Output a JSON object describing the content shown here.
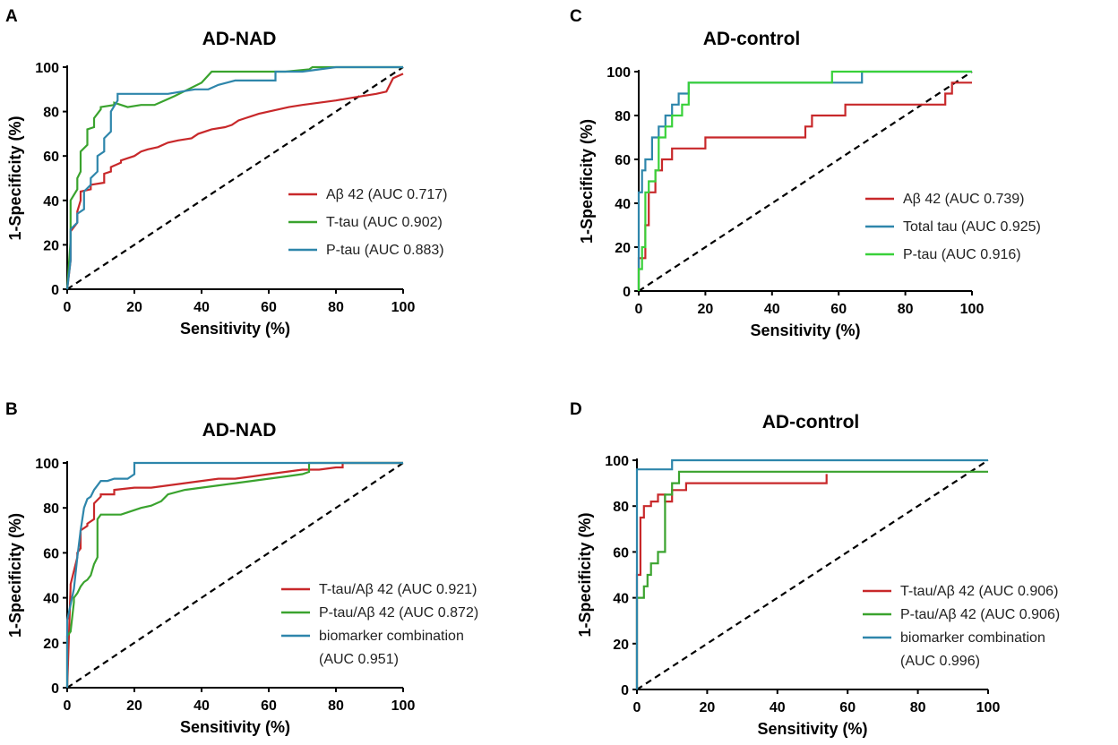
{
  "figure": {
    "background": "#ffffff"
  },
  "colors": {
    "red": "#c8282a",
    "green": "#3aa32e",
    "teal": "#2e86ab",
    "lime": "#39d13a",
    "diagonal": "#000000"
  },
  "chart_data": [
    {
      "panel": "A",
      "type": "line",
      "title": "AD-NAD",
      "xlabel": "Sensitivity (%)",
      "ylabel": "1-Specificity (%)",
      "xlim": [
        0,
        100
      ],
      "ylim": [
        0,
        100
      ],
      "xticks": [
        0,
        20,
        40,
        60,
        80,
        100
      ],
      "yticks": [
        0,
        20,
        40,
        60,
        80,
        100
      ],
      "legend_position": "lower-right",
      "reference_line": "diagonal",
      "series": [
        {
          "name": "Aβ 42 (AUC 0.717)",
          "color": "#c8282a",
          "x": [
            0,
            1,
            1,
            3,
            3,
            4,
            4,
            7,
            7,
            11,
            11,
            13,
            13,
            16,
            16,
            18,
            20,
            22,
            24,
            27,
            30,
            33,
            37,
            39,
            43,
            47,
            49,
            51,
            53,
            55,
            57,
            60,
            63,
            66,
            70,
            75,
            80,
            84,
            88,
            92,
            95,
            97,
            100
          ],
          "y": [
            0,
            13,
            26,
            30,
            35,
            40,
            44,
            45,
            47,
            48,
            52,
            53,
            55,
            57,
            58,
            59,
            60,
            62,
            63,
            64,
            66,
            67,
            68,
            70,
            72,
            73,
            74,
            76,
            77,
            78,
            79,
            80,
            81,
            82,
            83,
            84,
            85,
            86,
            87,
            88,
            89,
            95,
            97
          ]
        },
        {
          "name": "T-tau (AUC 0.902)",
          "color": "#3aa32e",
          "x": [
            0,
            1,
            1,
            3,
            3,
            4,
            4,
            6,
            6,
            8,
            8,
            10,
            10,
            14,
            14,
            18,
            22,
            26,
            29,
            32,
            36,
            40,
            43,
            48,
            55,
            60,
            65,
            72,
            73,
            80,
            90,
            100
          ],
          "y": [
            0,
            22,
            40,
            45,
            50,
            53,
            62,
            65,
            72,
            73,
            77,
            81,
            82,
            83,
            84,
            82,
            83,
            83,
            85,
            87,
            90,
            93,
            98,
            98,
            98,
            98,
            98,
            99,
            100,
            100,
            100,
            100
          ]
        },
        {
          "name": "P-tau (AUC 0.883)",
          "color": "#2e86ab",
          "x": [
            0,
            1,
            1,
            3,
            3,
            5,
            5,
            7,
            7,
            9,
            9,
            11,
            11,
            13,
            13,
            15,
            15,
            20,
            25,
            30,
            34,
            38,
            42,
            45,
            50,
            55,
            60,
            62,
            62,
            70,
            80,
            90,
            100
          ],
          "y": [
            0,
            13,
            27,
            30,
            34,
            36,
            44,
            47,
            50,
            53,
            60,
            62,
            68,
            71,
            80,
            85,
            88,
            88,
            88,
            88,
            89,
            90,
            90,
            92,
            94,
            94,
            94,
            94,
            98,
            98,
            100,
            100,
            100
          ]
        }
      ]
    },
    {
      "panel": "B",
      "type": "line",
      "title": "AD-NAD",
      "xlabel": "Sensitivity (%)",
      "ylabel": "1-Specificity (%)",
      "xlim": [
        0,
        100
      ],
      "ylim": [
        0,
        100
      ],
      "xticks": [
        0,
        20,
        40,
        60,
        80,
        100
      ],
      "yticks": [
        0,
        20,
        40,
        60,
        80,
        100
      ],
      "legend_position": "lower-right",
      "reference_line": "diagonal",
      "legend_labels": [
        "T-tau/Aβ 42 (AUC 0.921)",
        "P-tau/Aβ 42  (AUC 0.872)",
        "biomarker combination",
        "(AUC 0.951)"
      ],
      "series": [
        {
          "name": "T-tau/Aβ 42 (AUC 0.921)",
          "color": "#c8282a",
          "x": [
            0,
            1,
            1,
            3,
            3,
            4,
            4,
            6,
            6,
            8,
            8,
            10,
            10,
            14,
            14,
            20,
            25,
            30,
            35,
            40,
            45,
            50,
            55,
            60,
            65,
            70,
            75,
            80,
            82,
            82,
            100
          ],
          "y": [
            0,
            45,
            46,
            58,
            60,
            62,
            70,
            72,
            73,
            75,
            82,
            85,
            86,
            86,
            88,
            89,
            89,
            90,
            91,
            92,
            93,
            93,
            94,
            95,
            96,
            97,
            97,
            98,
            98,
            100,
            100
          ]
        },
        {
          "name": "P-tau/Aβ 42  (AUC 0.872)",
          "color": "#3aa32e",
          "x": [
            0,
            0,
            1,
            2,
            2,
            3,
            4,
            5,
            6,
            7,
            8,
            9,
            9,
            10,
            12,
            14,
            16,
            18,
            20,
            22,
            25,
            28,
            30,
            35,
            40,
            45,
            50,
            55,
            60,
            65,
            70,
            72,
            72,
            100
          ],
          "y": [
            0,
            23,
            25,
            38,
            40,
            42,
            45,
            47,
            48,
            50,
            55,
            58,
            75,
            77,
            77,
            77,
            77,
            78,
            79,
            80,
            81,
            83,
            86,
            88,
            89,
            90,
            91,
            92,
            93,
            94,
            95,
            96,
            100,
            100
          ]
        },
        {
          "name": "biomarker combination (AUC 0.951)",
          "color": "#2e86ab",
          "x": [
            0,
            0,
            1,
            2,
            3,
            4,
            5,
            6,
            7,
            8,
            9,
            10,
            12,
            14,
            16,
            18,
            20,
            20,
            30,
            40,
            50,
            60,
            70,
            80,
            90,
            100
          ],
          "y": [
            0,
            30,
            37,
            44,
            58,
            70,
            80,
            84,
            85,
            88,
            90,
            92,
            92,
            93,
            93,
            93,
            95,
            100,
            100,
            100,
            100,
            100,
            100,
            100,
            100,
            100
          ]
        }
      ]
    },
    {
      "panel": "C",
      "type": "line",
      "title": "AD-control",
      "xlabel": "Sensitivity (%)",
      "ylabel": "1-Specificity (%)",
      "xlim": [
        0,
        100
      ],
      "ylim": [
        0,
        100
      ],
      "xticks": [
        0,
        20,
        40,
        60,
        80,
        100
      ],
      "yticks": [
        0,
        20,
        40,
        60,
        80,
        100
      ],
      "legend_position": "lower-right",
      "reference_line": "diagonal",
      "series": [
        {
          "name": "Aβ 42 (AUC 0.739)",
          "color": "#c8282a",
          "x": [
            0,
            0,
            2,
            2,
            3,
            3,
            5,
            5,
            7,
            7,
            10,
            10,
            20,
            20,
            50,
            50,
            52,
            52,
            62,
            62,
            92,
            92,
            94,
            94,
            100
          ],
          "y": [
            0,
            15,
            15,
            30,
            30,
            45,
            45,
            55,
            55,
            60,
            60,
            65,
            65,
            70,
            70,
            75,
            75,
            80,
            80,
            85,
            85,
            90,
            90,
            95,
            95
          ]
        },
        {
          "name": "Total tau (AUC 0.925)",
          "color": "#2e86ab",
          "x": [
            0,
            0,
            1,
            1,
            2,
            2,
            4,
            4,
            6,
            6,
            8,
            8,
            10,
            10,
            12,
            12,
            15,
            15,
            20,
            40,
            58,
            58,
            67,
            67,
            100
          ],
          "y": [
            0,
            45,
            45,
            55,
            55,
            60,
            60,
            70,
            70,
            75,
            75,
            80,
            80,
            85,
            85,
            90,
            90,
            95,
            95,
            95,
            95,
            95,
            95,
            100,
            100
          ]
        },
        {
          "name": "P-tau (AUC 0.916)",
          "color": "#39d13a",
          "x": [
            0,
            0,
            1,
            1,
            2,
            2,
            3,
            3,
            5,
            5,
            6,
            6,
            8,
            8,
            10,
            10,
            13,
            13,
            15,
            15,
            20,
            40,
            58,
            58,
            100
          ],
          "y": [
            0,
            10,
            10,
            20,
            20,
            45,
            45,
            50,
            50,
            55,
            55,
            70,
            70,
            75,
            75,
            80,
            80,
            85,
            85,
            95,
            95,
            95,
            95,
            100,
            100
          ]
        }
      ]
    },
    {
      "panel": "D",
      "type": "line",
      "title": "AD-control",
      "xlabel": "Sensitivity (%)",
      "ylabel": "1-Specificity (%)",
      "xlim": [
        0,
        100
      ],
      "ylim": [
        0,
        100
      ],
      "xticks": [
        0,
        20,
        40,
        60,
        80,
        100
      ],
      "yticks": [
        0,
        20,
        40,
        60,
        80,
        100
      ],
      "legend_position": "lower-right",
      "reference_line": "diagonal",
      "legend_labels": [
        "T-tau/Aβ 42 (AUC 0.906)",
        "P-tau/Aβ 42  (AUC 0.906)",
        "biomarker combination",
        "(AUC 0.996)"
      ],
      "series": [
        {
          "name": "T-tau/Aβ 42 (AUC 0.906)",
          "color": "#c8282a",
          "x": [
            0,
            0,
            1,
            1,
            2,
            2,
            4,
            4,
            6,
            6,
            8,
            8,
            10,
            10,
            14,
            14,
            54,
            54
          ],
          "y": [
            0,
            50,
            50,
            75,
            75,
            80,
            80,
            82,
            82,
            85,
            85,
            82,
            82,
            87,
            87,
            90,
            90,
            94
          ]
        },
        {
          "name": "P-tau/Aβ 42  (AUC 0.906)",
          "color": "#3aa32e",
          "x": [
            0,
            0,
            2,
            2,
            3,
            3,
            4,
            4,
            6,
            6,
            8,
            8,
            10,
            10,
            12,
            12,
            54,
            100
          ],
          "y": [
            0,
            40,
            40,
            45,
            45,
            50,
            50,
            55,
            55,
            60,
            60,
            85,
            85,
            90,
            90,
            95,
            95,
            95
          ]
        },
        {
          "name": "biomarker combination (AUC 0.996)",
          "color": "#2e86ab",
          "x": [
            0,
            0,
            10,
            10,
            100
          ],
          "y": [
            0,
            96,
            96,
            100,
            100
          ]
        }
      ]
    }
  ]
}
